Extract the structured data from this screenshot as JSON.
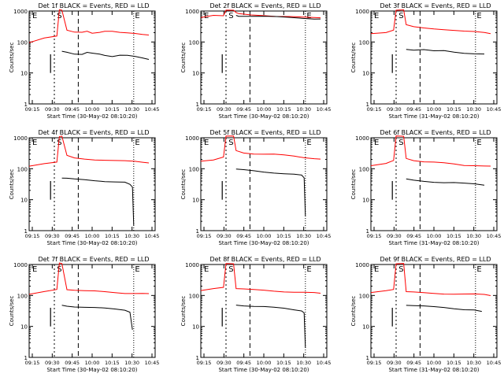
{
  "chart_data": [
    {
      "type": "line",
      "title": "Det 1f BLACK = Events, RED = LLD",
      "xlabel": "Start Time (30-May-02 08:10:20)",
      "ylabel": "Counts/sec",
      "xticks": [
        "09:15",
        "09:30",
        "09:45",
        "10:00",
        "10:15",
        "10:30",
        "10:45"
      ],
      "yticks": [
        "1",
        "10",
        "100",
        "1000"
      ],
      "ylim": [
        1,
        1000
      ],
      "yscale": "log",
      "markers": [
        "E",
        "S",
        "E"
      ],
      "series": [
        {
          "name": "RED = LLD",
          "color": "#ff0000",
          "x": [
            0,
            12,
            22,
            24,
            26,
            30,
            36,
            42,
            46,
            50,
            56,
            60,
            66,
            72,
            78,
            84,
            90,
            95
          ],
          "y": [
            95,
            130,
            150,
            1100,
            1100,
            250,
            210,
            200,
            215,
            190,
            210,
            230,
            225,
            200,
            190,
            185,
            180,
            175
          ]
        },
        {
          "name": "BLACK = Events",
          "color": "#000000",
          "x": [
            26,
            30,
            36,
            42,
            46,
            50,
            56,
            60,
            66,
            72,
            78,
            84,
            90,
            95
          ],
          "y": [
            50,
            48,
            42,
            40,
            45,
            42,
            40,
            38,
            35,
            38,
            36,
            33,
            30,
            28
          ]
        }
      ]
    },
    {
      "type": "line",
      "title": "Det 2f BLACK = Events, RED = LLD",
      "xlabel": "Start Time (30-May-02 08:10:20)",
      "ylabel": "Counts/sec",
      "xticks": [
        "09:15",
        "09:30",
        "09:45",
        "10:00",
        "10:15",
        "10:30",
        "10:45"
      ],
      "yticks": [
        "1",
        "10",
        "100",
        "1000"
      ],
      "ylim": [
        1,
        1000
      ],
      "yscale": "log",
      "markers": [
        "E",
        "S",
        "E"
      ],
      "series": [
        {
          "name": "RED = LLD",
          "color": "#ff0000",
          "x": [
            0,
            10,
            18,
            20,
            26,
            28,
            30,
            40,
            50,
            60,
            70,
            80,
            90,
            95
          ],
          "y": [
            600,
            700,
            700,
            1100,
            1100,
            900,
            800,
            720,
            700,
            680,
            690,
            650,
            600,
            580
          ]
        },
        {
          "name": "BLACK = Events",
          "color": "#000000",
          "x": [
            28,
            30,
            40,
            50,
            60,
            70,
            80,
            90,
            95
          ],
          "y": [
            750,
            700,
            680,
            660,
            640,
            620,
            600,
            570,
            560
          ]
        }
      ]
    },
    {
      "type": "line",
      "title": "Det 3f BLACK = Events, RED = LLD",
      "xlabel": "Start Time (31-May-02 08:10:20)",
      "ylabel": "Counts/sec",
      "xticks": [
        "09:15",
        "09:30",
        "09:45",
        "10:00",
        "10:15",
        "10:30",
        "10:45"
      ],
      "yticks": [
        "1",
        "10",
        "100",
        "1000"
      ],
      "ylim": [
        1,
        1000
      ],
      "yscale": "log",
      "markers": [
        "E",
        "S",
        "E"
      ],
      "series": [
        {
          "name": "RED = LLD",
          "color": "#ff0000",
          "x": [
            0,
            12,
            18,
            20,
            26,
            28,
            34,
            42,
            50,
            58,
            66,
            74,
            82,
            90,
            95
          ],
          "y": [
            180,
            200,
            250,
            1100,
            1100,
            350,
            300,
            280,
            270,
            260,
            240,
            220,
            210,
            200,
            190
          ]
        },
        {
          "name": "BLACK = Events",
          "color": "#000000",
          "x": [
            28,
            34,
            42,
            50,
            58,
            66,
            74,
            82,
            90
          ],
          "y": [
            60,
            55,
            55,
            50,
            52,
            48,
            45,
            42,
            40
          ]
        }
      ]
    },
    {
      "type": "line",
      "title": "Det 4f BLACK = Events, RED = LLD",
      "xlabel": "Start Time (30-May-02 08:10:20)",
      "ylabel": "Counts/sec",
      "xticks": [
        "09:15",
        "09:30",
        "09:45",
        "10:00",
        "10:15",
        "10:30",
        "10:45"
      ],
      "yticks": [
        "1",
        "10",
        "100",
        "1000"
      ],
      "ylim": [
        1,
        1000
      ],
      "yscale": "log",
      "markers": [
        "E",
        "S",
        "E"
      ],
      "series": [
        {
          "name": "RED = LLD",
          "color": "#ff0000",
          "x": [
            0,
            12,
            22,
            24,
            26,
            30,
            36,
            44,
            52,
            60,
            68,
            76,
            84,
            90,
            95
          ],
          "y": [
            120,
            150,
            170,
            1100,
            1100,
            260,
            220,
            210,
            200,
            190,
            180,
            175,
            170,
            165,
            160
          ]
        },
        {
          "name": "BLACK = Events",
          "color": "#000000",
          "x": [
            26,
            30,
            36,
            44,
            52,
            60,
            68,
            76,
            80,
            82,
            83
          ],
          "y": [
            50,
            48,
            45,
            44,
            42,
            40,
            38,
            36,
            30,
            25,
            1.5
          ]
        }
      ]
    },
    {
      "type": "line",
      "title": "Det 5f BLACK = Events, RED = LLD",
      "xlabel": "Start Time (30-May-02 08:10:20)",
      "ylabel": "Counts/sec",
      "xticks": [
        "09:15",
        "09:30",
        "09:45",
        "10:00",
        "10:15",
        "10:30",
        "10:45"
      ],
      "yticks": [
        "1",
        "10",
        "100",
        "1000"
      ],
      "ylim": [
        1,
        1000
      ],
      "yscale": "log",
      "markers": [
        "E",
        "S",
        "E"
      ],
      "series": [
        {
          "name": "RED = LLD",
          "color": "#ff0000",
          "x": [
            0,
            10,
            18,
            20,
            26,
            28,
            34,
            42,
            50,
            58,
            66,
            74,
            82,
            90,
            95
          ],
          "y": [
            180,
            200,
            240,
            1100,
            1100,
            380,
            330,
            310,
            300,
            290,
            270,
            250,
            230,
            220,
            210
          ]
        },
        {
          "name": "BLACK = Events",
          "color": "#000000",
          "x": [
            28,
            34,
            42,
            50,
            58,
            66,
            74,
            80,
            82,
            83
          ],
          "y": [
            95,
            90,
            85,
            80,
            75,
            70,
            65,
            60,
            50,
            3
          ]
        }
      ]
    },
    {
      "type": "line",
      "title": "Det 6f BLACK = Events, RED = LLD",
      "xlabel": "Start Time (31-May-02 08:10:20)",
      "ylabel": "Counts/sec",
      "xticks": [
        "09:15",
        "09:30",
        "09:45",
        "10:00",
        "10:15",
        "10:30",
        "10:45"
      ],
      "yticks": [
        "1",
        "10",
        "100",
        "1000"
      ],
      "ylim": [
        1,
        1000
      ],
      "yscale": "log",
      "markers": [
        "E",
        "S",
        "E"
      ],
      "series": [
        {
          "name": "RED = LLD",
          "color": "#ff0000",
          "x": [
            0,
            12,
            18,
            20,
            26,
            28,
            34,
            42,
            50,
            58,
            66,
            74,
            82,
            90,
            95
          ],
          "y": [
            130,
            150,
            180,
            1100,
            1100,
            220,
            190,
            170,
            160,
            150,
            140,
            130,
            130,
            125,
            120
          ]
        },
        {
          "name": "BLACK = Events",
          "color": "#000000",
          "x": [
            28,
            34,
            42,
            50,
            58,
            66,
            74,
            82,
            90
          ],
          "y": [
            45,
            42,
            40,
            38,
            36,
            35,
            33,
            32,
            30
          ]
        }
      ]
    },
    {
      "type": "line",
      "title": "Det 7f BLACK = Events, RED = LLD",
      "xlabel": "Start Time (30-May-02 08:10:20)",
      "ylabel": "Counts/sec",
      "xticks": [
        "09:15",
        "09:30",
        "09:45",
        "10:00",
        "10:15",
        "10:30",
        "10:45"
      ],
      "yticks": [
        "1",
        "10",
        "100",
        "1000"
      ],
      "ylim": [
        1,
        1000
      ],
      "yscale": "log",
      "markers": [
        "E",
        "S",
        "E"
      ],
      "series": [
        {
          "name": "RED = LLD",
          "color": "#ff0000",
          "x": [
            0,
            12,
            22,
            24,
            26,
            30,
            36,
            44,
            52,
            60,
            68,
            76,
            84,
            90,
            95
          ],
          "y": [
            110,
            130,
            150,
            1100,
            1100,
            160,
            150,
            140,
            135,
            130,
            125,
            120,
            118,
            115,
            110
          ]
        },
        {
          "name": "BLACK = Events",
          "color": "#000000",
          "x": [
            26,
            30,
            36,
            44,
            52,
            60,
            68,
            76,
            80,
            82
          ],
          "y": [
            48,
            46,
            44,
            42,
            40,
            38,
            36,
            34,
            30,
            8
          ]
        }
      ]
    },
    {
      "type": "line",
      "title": "Det 8f BLACK = Events, RED = LLD",
      "xlabel": "Start Time (30-May-02 08:10:20)",
      "ylabel": "Counts/sec",
      "xticks": [
        "09:15",
        "09:30",
        "09:45",
        "10:00",
        "10:15",
        "10:30",
        "10:45"
      ],
      "yticks": [
        "1",
        "10",
        "100",
        "1000"
      ],
      "ylim": [
        1,
        1000
      ],
      "yscale": "log",
      "markers": [
        "E",
        "S",
        "E"
      ],
      "series": [
        {
          "name": "RED = LLD",
          "color": "#ff0000",
          "x": [
            0,
            10,
            18,
            20,
            26,
            28,
            34,
            42,
            50,
            58,
            66,
            74,
            82,
            90,
            95
          ],
          "y": [
            140,
            160,
            180,
            1100,
            1100,
            170,
            160,
            150,
            145,
            140,
            135,
            130,
            125,
            120,
            115
          ]
        },
        {
          "name": "BLACK = Events",
          "color": "#000000",
          "x": [
            28,
            34,
            42,
            50,
            58,
            66,
            74,
            80,
            82,
            83
          ],
          "y": [
            50,
            48,
            45,
            43,
            40,
            38,
            35,
            33,
            28,
            2
          ]
        }
      ]
    },
    {
      "type": "line",
      "title": "Det 9f BLACK = Events, RED = LLD",
      "xlabel": "Start Time (31-May-02 08:10:20)",
      "ylabel": "Counts/sec",
      "xticks": [
        "09:15",
        "09:30",
        "09:45",
        "10:00",
        "10:15",
        "10:30",
        "10:45"
      ],
      "yticks": [
        "1",
        "10",
        "100",
        "1000"
      ],
      "ylim": [
        1,
        1000
      ],
      "yscale": "log",
      "markers": [
        "E",
        "S",
        "E"
      ],
      "series": [
        {
          "name": "RED = LLD",
          "color": "#ff0000",
          "x": [
            0,
            12,
            18,
            20,
            26,
            28,
            34,
            42,
            50,
            58,
            66,
            74,
            82,
            90,
            95
          ],
          "y": [
            120,
            140,
            160,
            1100,
            1100,
            130,
            125,
            120,
            118,
            115,
            112,
            110,
            108,
            105,
            100
          ]
        },
        {
          "name": "BLACK = Events",
          "color": "#000000",
          "x": [
            28,
            34,
            42,
            50,
            58,
            66,
            74,
            82,
            88
          ],
          "y": [
            50,
            48,
            45,
            42,
            40,
            38,
            36,
            35,
            30
          ]
        }
      ]
    }
  ]
}
